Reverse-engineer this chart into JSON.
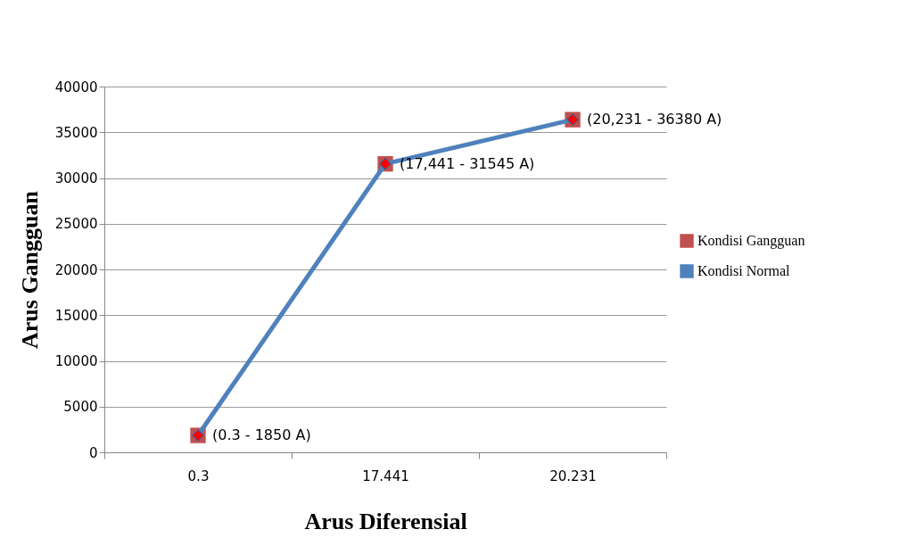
{
  "chart_data": {
    "type": "line",
    "xlabel": "Arus Diferensial",
    "ylabel": "Arus Gangguan",
    "categories": [
      "0.3",
      "17.441",
      "20.231"
    ],
    "series": [
      {
        "name": "Kondisi Gangguan",
        "type": "scatter",
        "marker": "square",
        "color": "#c0504d",
        "values": [
          1850,
          31545,
          36380
        ]
      },
      {
        "name": "Kondisi Normal",
        "marker": "diamond",
        "color": "#4f81bd",
        "values": [
          1850,
          31545,
          36380
        ]
      }
    ],
    "ylim": [
      0,
      40000
    ],
    "yticks": [
      0,
      5000,
      10000,
      15000,
      20000,
      25000,
      30000,
      35000,
      40000
    ],
    "grid": "y",
    "legend": "right",
    "annotations": [
      {
        "text": "(0.3 - 1850 A)",
        "x": "0.3",
        "y": 1850
      },
      {
        "text": "(17,441 - 31545 A)",
        "x": "17.441",
        "y": 31545
      },
      {
        "text": "(20,231 - 36380 A)",
        "x": "20.231",
        "y": 36380
      }
    ]
  }
}
